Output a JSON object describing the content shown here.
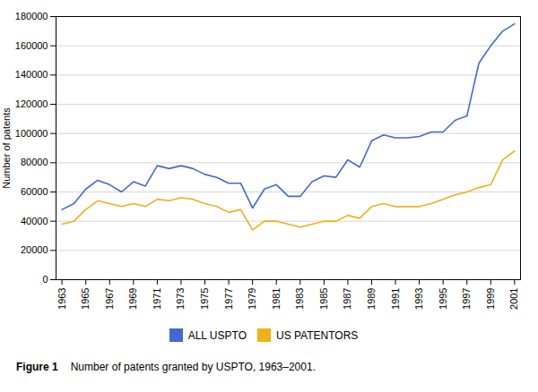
{
  "chart_data": {
    "type": "line",
    "x": [
      1963,
      1964,
      1965,
      1966,
      1967,
      1968,
      1969,
      1970,
      1971,
      1972,
      1973,
      1974,
      1975,
      1976,
      1977,
      1978,
      1979,
      1980,
      1981,
      1982,
      1983,
      1984,
      1985,
      1986,
      1987,
      1988,
      1989,
      1990,
      1991,
      1992,
      1993,
      1994,
      1995,
      1996,
      1997,
      1998,
      1999,
      2000,
      2001
    ],
    "series": [
      {
        "name": "ALL USPTO",
        "values": [
          48000,
          52000,
          62000,
          68000,
          65000,
          60000,
          67000,
          64000,
          78000,
          76000,
          78000,
          76000,
          72000,
          70000,
          66000,
          66000,
          49000,
          62000,
          65000,
          57000,
          57000,
          67000,
          71000,
          70000,
          82000,
          77000,
          95000,
          99000,
          97000,
          97000,
          98000,
          101000,
          101000,
          109000,
          112000,
          148000,
          160000,
          170000,
          175000
        ]
      },
      {
        "name": "US PATENTORS",
        "values": [
          38000,
          40000,
          48000,
          54000,
          52000,
          50000,
          52000,
          50000,
          55000,
          54000,
          56000,
          55000,
          52000,
          50000,
          46000,
          48000,
          34000,
          40000,
          40000,
          38000,
          36000,
          38000,
          40000,
          40000,
          44000,
          42000,
          50000,
          52000,
          50000,
          50000,
          50000,
          52000,
          55000,
          58000,
          60000,
          63000,
          65000,
          82000,
          88000
        ]
      }
    ],
    "ylabel": "Number of patents",
    "xlim": [
      1962.5,
      2001.5
    ],
    "xticks": [
      1963,
      1965,
      1967,
      1969,
      1971,
      1973,
      1975,
      1977,
      1979,
      1981,
      1983,
      1985,
      1987,
      1989,
      1991,
      1993,
      1995,
      1997,
      1999,
      2001
    ],
    "ylim": [
      0,
      180000
    ],
    "yticks": [
      0,
      20000,
      40000,
      60000,
      80000,
      100000,
      120000,
      140000,
      160000,
      180000
    ],
    "grid": "y",
    "legend": "bottom",
    "caption": [
      "Figure 1",
      "Number of patents granted by USPTO, 1963–2001."
    ]
  }
}
